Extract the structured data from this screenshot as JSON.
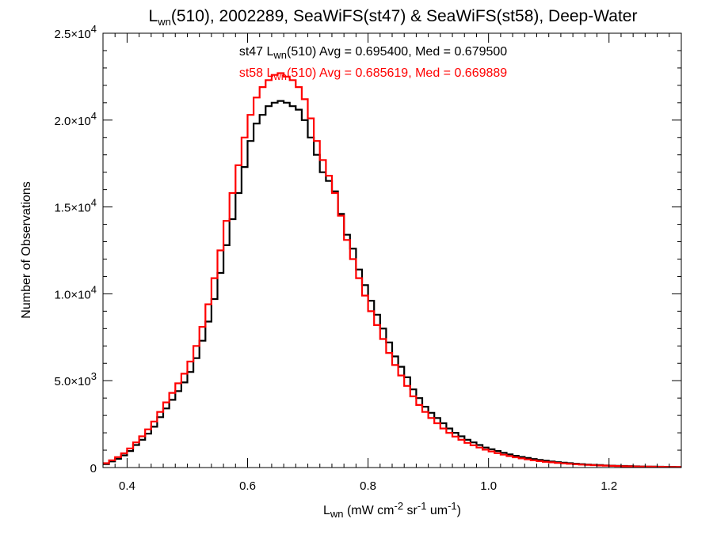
{
  "chart_data": {
    "type": "line",
    "drawstyle": "steps",
    "title": {
      "main": "L",
      "main_sub": "wn",
      "rest": "(510), 2002289, SeaWiFS(st47) & SeaWiFS(st58), Deep-Water"
    },
    "xlabel": {
      "main": "L",
      "main_sub": "wn",
      "rest": " (mW cm",
      "sup1": "-2",
      "mid1": " sr",
      "sup2": "-1",
      "mid2": " um",
      "sup3": "-1",
      "end": ")"
    },
    "ylabel": "Number of Observations",
    "xlim": [
      0.36,
      1.32
    ],
    "ylim": [
      0,
      25000
    ],
    "x_ticks": [
      0.4,
      0.6,
      0.8,
      1.0,
      1.2
    ],
    "x_tick_labels": [
      "0.4",
      "0.6",
      "0.8",
      "1.0",
      "1.2"
    ],
    "y_ticks": [
      0,
      5000,
      10000,
      15000,
      20000,
      25000
    ],
    "y_tick_labels": [
      {
        "mant": "0",
        "exp": ""
      },
      {
        "mant": "5.0×10",
        "exp": "3"
      },
      {
        "mant": "1.0×10",
        "exp": "4"
      },
      {
        "mant": "1.5×10",
        "exp": "4"
      },
      {
        "mant": "2.0×10",
        "exp": "4"
      },
      {
        "mant": "2.5×10",
        "exp": "4"
      }
    ],
    "legend_position": "top-center",
    "series": [
      {
        "name": "st47",
        "color": "#000000",
        "legend": {
          "pre": "st47 L",
          "sub": "wn",
          "post": "(510) Avg = 0.695400, Med = 0.679500"
        },
        "x": [
          0.36,
          0.37,
          0.38,
          0.39,
          0.4,
          0.41,
          0.42,
          0.43,
          0.44,
          0.45,
          0.46,
          0.47,
          0.48,
          0.49,
          0.5,
          0.51,
          0.52,
          0.53,
          0.54,
          0.55,
          0.56,
          0.57,
          0.58,
          0.59,
          0.6,
          0.61,
          0.62,
          0.63,
          0.64,
          0.65,
          0.66,
          0.67,
          0.68,
          0.69,
          0.7,
          0.71,
          0.72,
          0.73,
          0.74,
          0.75,
          0.76,
          0.77,
          0.78,
          0.79,
          0.8,
          0.81,
          0.82,
          0.83,
          0.84,
          0.85,
          0.86,
          0.87,
          0.88,
          0.89,
          0.9,
          0.91,
          0.92,
          0.93,
          0.94,
          0.95,
          0.96,
          0.97,
          0.98,
          0.99,
          1.0,
          1.01,
          1.02,
          1.03,
          1.04,
          1.05,
          1.06,
          1.07,
          1.08,
          1.09,
          1.1,
          1.11,
          1.12,
          1.13,
          1.14,
          1.15,
          1.16,
          1.17,
          1.18,
          1.19,
          1.2,
          1.21,
          1.22,
          1.23,
          1.24,
          1.25,
          1.26,
          1.27,
          1.28,
          1.29,
          1.3,
          1.31
        ],
        "values": [
          200,
          350,
          500,
          700,
          950,
          1300,
          1600,
          1950,
          2350,
          2900,
          3400,
          3900,
          4400,
          4900,
          5500,
          6300,
          7300,
          8400,
          9700,
          11200,
          12800,
          14300,
          15800,
          17300,
          18800,
          19800,
          20300,
          20800,
          21000,
          21100,
          21000,
          20800,
          20600,
          20000,
          19000,
          18000,
          17000,
          16500,
          15900,
          14600,
          13400,
          12600,
          11400,
          10500,
          9600,
          8800,
          8000,
          7200,
          6400,
          5800,
          5200,
          4500,
          4000,
          3500,
          3150,
          2850,
          2550,
          2250,
          2000,
          1800,
          1600,
          1450,
          1300,
          1150,
          1050,
          950,
          850,
          760,
          680,
          610,
          550,
          490,
          440,
          390,
          350,
          310,
          280,
          250,
          220,
          195,
          175,
          155,
          140,
          125,
          110,
          100,
          90,
          80,
          70,
          60,
          55,
          50,
          45,
          40,
          35,
          30
        ]
      },
      {
        "name": "st58",
        "color": "#ff0000",
        "legend": {
          "pre": "st58 L",
          "sub": "wn",
          "post": "(510) Avg = 0.685619, Med = 0.669889"
        },
        "x": [
          0.36,
          0.37,
          0.38,
          0.39,
          0.4,
          0.41,
          0.42,
          0.43,
          0.44,
          0.45,
          0.46,
          0.47,
          0.48,
          0.49,
          0.5,
          0.51,
          0.52,
          0.53,
          0.54,
          0.55,
          0.56,
          0.57,
          0.58,
          0.59,
          0.6,
          0.61,
          0.62,
          0.63,
          0.64,
          0.65,
          0.66,
          0.67,
          0.68,
          0.69,
          0.7,
          0.71,
          0.72,
          0.73,
          0.74,
          0.75,
          0.76,
          0.77,
          0.78,
          0.79,
          0.8,
          0.81,
          0.82,
          0.83,
          0.84,
          0.85,
          0.86,
          0.87,
          0.88,
          0.89,
          0.9,
          0.91,
          0.92,
          0.93,
          0.94,
          0.95,
          0.96,
          0.97,
          0.98,
          0.99,
          1.0,
          1.01,
          1.02,
          1.03,
          1.04,
          1.05,
          1.06,
          1.07,
          1.08,
          1.09,
          1.1,
          1.11,
          1.12,
          1.13,
          1.14,
          1.15,
          1.16,
          1.17,
          1.18,
          1.19,
          1.2,
          1.21,
          1.22,
          1.23,
          1.24,
          1.25,
          1.26,
          1.27,
          1.28,
          1.29,
          1.3,
          1.31
        ],
        "values": [
          250,
          420,
          600,
          820,
          1100,
          1450,
          1800,
          2200,
          2650,
          3200,
          3750,
          4300,
          4850,
          5400,
          6100,
          7000,
          8100,
          9400,
          10900,
          12500,
          14200,
          15800,
          17400,
          19000,
          20300,
          21300,
          21900,
          22300,
          22600,
          22700,
          22500,
          22300,
          21900,
          21200,
          20100,
          18800,
          17700,
          16800,
          15800,
          14500,
          13100,
          12000,
          10900,
          9900,
          9000,
          8200,
          7400,
          6600,
          5900,
          5300,
          4700,
          4100,
          3600,
          3200,
          2850,
          2550,
          2250,
          2000,
          1780,
          1600,
          1420,
          1280,
          1150,
          1030,
          930,
          830,
          740,
          660,
          590,
          530,
          470,
          420,
          370,
          330,
          300,
          270,
          240,
          215,
          190,
          170,
          150,
          135,
          120,
          108,
          95,
          85,
          75,
          68,
          60,
          54,
          48,
          44,
          40,
          36,
          32,
          28
        ]
      }
    ]
  }
}
